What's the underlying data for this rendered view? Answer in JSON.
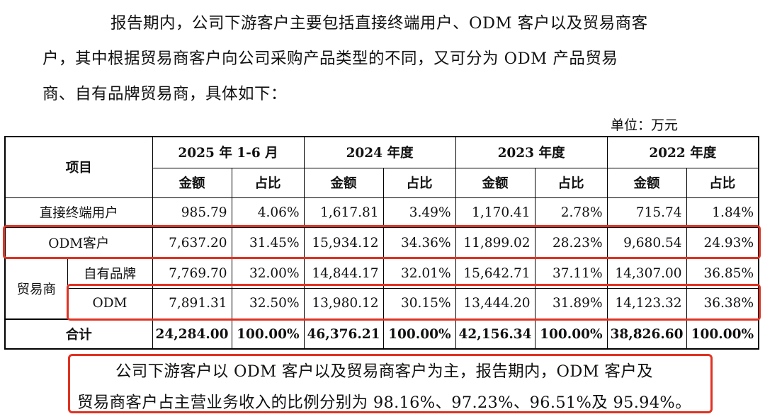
{
  "intro": {
    "line1": "报告期内，公司下游客户主要包括直接终端用户、ODM 客户以及贸易商客",
    "line2": "户，其中根据贸易商客户向公司采购产品类型的不同，又可分为 ODM 产品贸易",
    "line3": "商、自有品牌贸易商，具体如下："
  },
  "unit_label": "单位：万元",
  "table": {
    "item_header": "项目",
    "periods": [
      "2025 年 1-6 月",
      "2024 年度",
      "2023 年度",
      "2022 年度"
    ],
    "amount_label": "金额",
    "ratio_label": "占比",
    "trader_group_label": "贸易商",
    "rows": [
      {
        "label": "直接终端用户",
        "cells": [
          "985.79",
          "4.06%",
          "1,617.81",
          "3.49%",
          "1,170.41",
          "2.78%",
          "715.74",
          "1.84%"
        ]
      },
      {
        "label": "ODM客户",
        "cells": [
          "7,637.20",
          "31.45%",
          "15,934.12",
          "34.36%",
          "11,899.02",
          "28.23%",
          "9,680.54",
          "24.93%"
        ]
      },
      {
        "label": "自有品牌",
        "cells": [
          "7,769.70",
          "32.00%",
          "14,844.17",
          "32.01%",
          "15,642.71",
          "37.11%",
          "14,307.00",
          "36.85%"
        ]
      },
      {
        "label": "ODM",
        "cells": [
          "7,891.31",
          "32.50%",
          "13,980.12",
          "30.15%",
          "13,444.20",
          "31.89%",
          "14,123.32",
          "36.38%"
        ]
      },
      {
        "label": "合计",
        "cells": [
          "24,284.00",
          "100.00%",
          "46,376.21",
          "100.00%",
          "42,156.34",
          "100.00%",
          "38,826.60",
          "100.00%"
        ]
      }
    ]
  },
  "conclusion": {
    "line1": "公司下游客户以 ODM 客户以及贸易商客户为主，报告期内，ODM 客户及",
    "line2": "贸易商客户占主营业务收入的比例分别为 98.16%、97.23%、96.51%及 95.94%。"
  },
  "colors": {
    "highlight": "#e03222",
    "text": "#111111"
  }
}
